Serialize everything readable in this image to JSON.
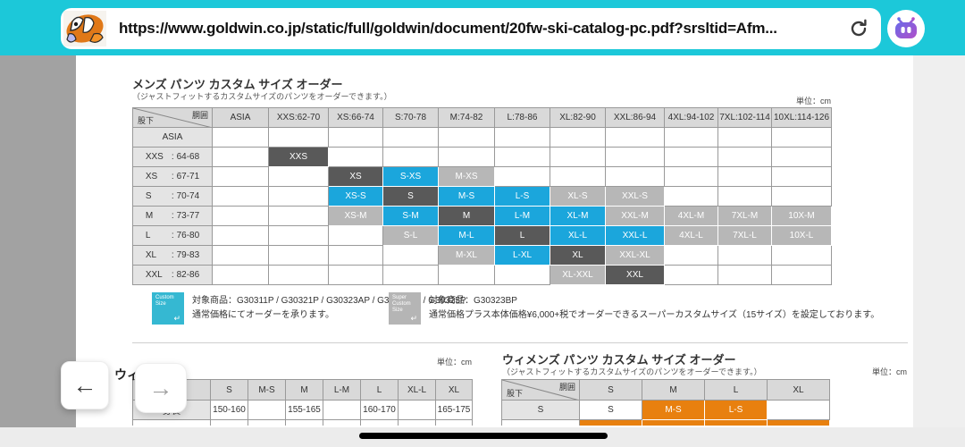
{
  "browser": {
    "url": "https://www.goldwin.co.jp/static/full/goldwin/document/20fw-ski-catalog-pc.pdf?srsltid=Afm...",
    "bar_color": "#1cc8d9"
  },
  "colors": {
    "dark": "#595959",
    "blue": "#1ba6dc",
    "light": "#b7b7b7",
    "orange": "#e8800f"
  },
  "mens_section": {
    "title": "メンズ パンツ カスタム サイズ オーダー",
    "subtitle": "（ジャストフィットするカスタムサイズのパンツをオーダーできます。）",
    "unit": "単位：cm",
    "table": {
      "corner": {
        "top_right": "胴囲",
        "bottom_left": "股下"
      },
      "columns": [
        "ASIA",
        "XXS:62-70",
        "XS:66-74",
        "S:70-78",
        "M:74-82",
        "L:78-86",
        "XL:82-90",
        "XXL:86-94",
        "4XL:94-102",
        "7XL:102-114",
        "10XL:114-126"
      ],
      "rows": [
        {
          "size": "ASIA",
          "range": null,
          "cells": [
            null,
            null,
            null,
            null,
            null,
            null,
            null,
            null,
            null,
            null,
            null
          ]
        },
        {
          "size": "XXS",
          "range": "64-68",
          "cells": [
            null,
            {
              "t": "XXS",
              "c": "dark"
            },
            null,
            null,
            null,
            null,
            null,
            null,
            null,
            null,
            null
          ]
        },
        {
          "size": "XS",
          "range": "67-71",
          "cells": [
            null,
            null,
            {
              "t": "XS",
              "c": "dark"
            },
            {
              "t": "S-XS",
              "c": "blue"
            },
            {
              "t": "M-XS",
              "c": "light"
            },
            null,
            null,
            null,
            null,
            null,
            null
          ]
        },
        {
          "size": "S",
          "range": "70-74",
          "cells": [
            null,
            null,
            {
              "t": "XS-S",
              "c": "blue"
            },
            {
              "t": "S",
              "c": "dark"
            },
            {
              "t": "M-S",
              "c": "blue"
            },
            {
              "t": "L-S",
              "c": "blue"
            },
            {
              "t": "XL-S",
              "c": "light"
            },
            {
              "t": "XXL-S",
              "c": "light"
            },
            null,
            null,
            null
          ]
        },
        {
          "size": "M",
          "range": "73-77",
          "cells": [
            null,
            null,
            {
              "t": "XS-M",
              "c": "light"
            },
            {
              "t": "S-M",
              "c": "blue"
            },
            {
              "t": "M",
              "c": "dark"
            },
            {
              "t": "L-M",
              "c": "blue"
            },
            {
              "t": "XL-M",
              "c": "blue"
            },
            {
              "t": "XXL-M",
              "c": "light"
            },
            {
              "t": "4XL-M",
              "c": "light"
            },
            {
              "t": "7XL-M",
              "c": "light"
            },
            {
              "t": "10X-M",
              "c": "light"
            }
          ]
        },
        {
          "size": "L",
          "range": "76-80",
          "cells": [
            null,
            null,
            null,
            {
              "t": "S-L",
              "c": "light"
            },
            {
              "t": "M-L",
              "c": "blue"
            },
            {
              "t": "L",
              "c": "dark"
            },
            {
              "t": "XL-L",
              "c": "blue"
            },
            {
              "t": "XXL-L",
              "c": "blue"
            },
            {
              "t": "4XL-L",
              "c": "light"
            },
            {
              "t": "7XL-L",
              "c": "light"
            },
            {
              "t": "10X-L",
              "c": "light"
            }
          ]
        },
        {
          "size": "XL",
          "range": "79-83",
          "cells": [
            null,
            null,
            null,
            null,
            {
              "t": "M-XL",
              "c": "light"
            },
            {
              "t": "L-XL",
              "c": "blue"
            },
            {
              "t": "XL",
              "c": "dark"
            },
            {
              "t": "XXL-XL",
              "c": "light"
            },
            null,
            null,
            null
          ]
        },
        {
          "size": "XXL",
          "range": "82-86",
          "cells": [
            null,
            null,
            null,
            null,
            null,
            null,
            {
              "t": "XL-XXL",
              "c": "light"
            },
            {
              "t": "XXL",
              "c": "dark"
            },
            null,
            null,
            null
          ]
        }
      ]
    }
  },
  "notes": [
    {
      "badge_lines": [
        "Custom",
        "Size"
      ],
      "badge_color": "#35b8d2",
      "badge_arrow": "⌐",
      "line1": "対象商品：G30311P / G30321P / G30323AP / G30323BP / G30325P",
      "line2": "通常価格にてオーダーを承ります。"
    },
    {
      "badge_lines": [
        "Super",
        "Custom",
        "Size"
      ],
      "badge_color": "#b5b5b5",
      "badge_arrow": "⌐",
      "line1": "対象商品：G30323BP",
      "line2": "通常価格プラス本体価格¥6,000+税でオーダーできるスーパーカスタムサイズ（15サイズ）を設定しております。"
    }
  ],
  "womens_left": {
    "partial_title": "ウィ",
    "unit": "単位：cm",
    "columns": [
      "S",
      "M-S",
      "M",
      "L-M",
      "L",
      "XL-L",
      "XL"
    ],
    "row_label": "身長",
    "values": [
      "150-160",
      "",
      "155-165",
      "",
      "160-170",
      "",
      "165-175"
    ]
  },
  "womens_right": {
    "title": "ウィメンズ パンツ カスタム サイズ オーダー",
    "subtitle": "（ジャストフィットするカスタムサイズのパンツをオーダーできます。）",
    "unit": "単位：cm",
    "corner": {
      "top_right": "胴囲",
      "bottom_left": "股下"
    },
    "columns": [
      "S",
      "M",
      "L",
      "XL"
    ],
    "rows": [
      {
        "label": "S",
        "cells": [
          {
            "t": "S",
            "c": "plain"
          },
          {
            "t": "M-S",
            "c": "orange"
          },
          {
            "t": "L-S",
            "c": "orange"
          },
          null
        ]
      }
    ],
    "partial_row": [
      null,
      {
        "c": "orange"
      },
      {
        "c": "orange"
      },
      {
        "c": "orange"
      },
      {
        "c": "orange"
      }
    ]
  },
  "nav": {
    "back": "←",
    "forward": "→"
  }
}
